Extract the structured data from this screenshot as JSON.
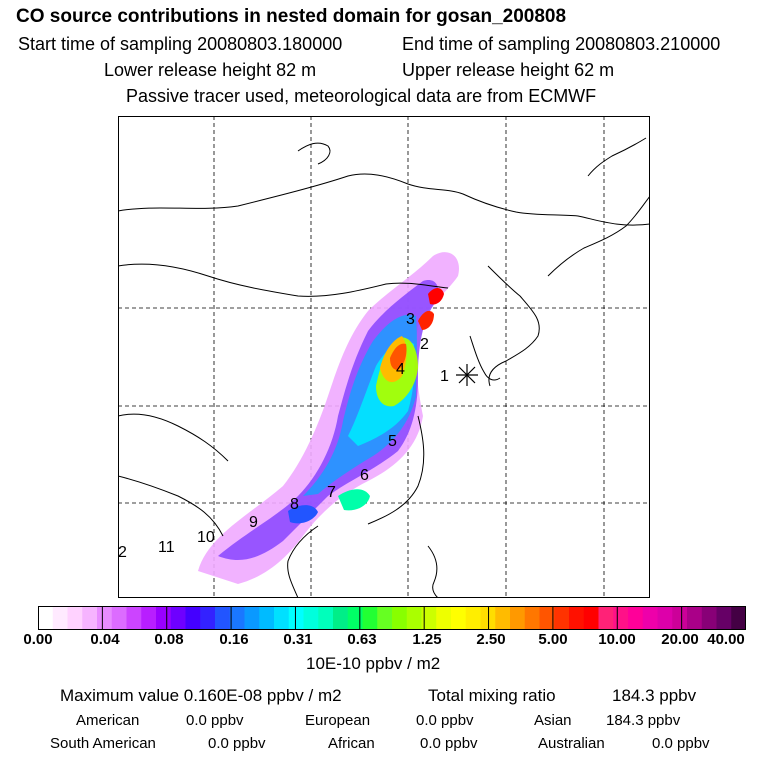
{
  "header": {
    "title": "CO  source contributions in nested domain for gosan_200808",
    "start_label": "Start time of sampling 20080803.180000",
    "end_label": "End time of sampling 20080803.210000",
    "lower_label": "Lower release height   82 m",
    "upper_label": "Upper release height   62 m",
    "note": "Passive tracer used, meteorological data are from ECMWF"
  },
  "map": {
    "region_labels": [
      "1",
      "2",
      "3",
      "4",
      "5",
      "6",
      "7",
      "8",
      "9",
      "10",
      "11",
      "2"
    ],
    "receptor_marker": "star-cross",
    "colors": {
      "land_outline": "#000000",
      "grid": "#000000",
      "plume_low": "#ff99ff",
      "plume_mid": "#0033ff",
      "plume_high": "#ffff00",
      "plume_peak": "#ff0000"
    }
  },
  "colorbar": {
    "tick_labels": [
      "0.00",
      "0.04",
      "0.08",
      "0.16",
      "0.31",
      "0.63",
      "1.25",
      "2.50",
      "5.00",
      "10.00",
      "20.00",
      "40.00"
    ],
    "colors": [
      "#ffffff",
      "#ffeaff",
      "#ffd2ff",
      "#f6b4ff",
      "#e88cff",
      "#dc6cff",
      "#cc44ff",
      "#b81eff",
      "#9900ff",
      "#6e00ff",
      "#4400ff",
      "#3322ff",
      "#2255ff",
      "#1a77ff",
      "#0a99ff",
      "#00bbff",
      "#00e0ff",
      "#00ffff",
      "#00ffdd",
      "#00ffbb",
      "#00ee88",
      "#00ff66",
      "#22ff33",
      "#66ff22",
      "#88ff00",
      "#aaff00",
      "#ccff00",
      "#eeff00",
      "#ffff00",
      "#ffee00",
      "#ffdd00",
      "#ffbb00",
      "#ff9900",
      "#ff7700",
      "#ff5500",
      "#ff3300",
      "#ff1100",
      "#ff0000",
      "#ff2277",
      "#ff1188",
      "#ff0099",
      "#ee00aa",
      "#dd00aa",
      "#cc0099",
      "#aa0088",
      "#880077",
      "#660066",
      "#440044"
    ],
    "units": "10E-10 ppbv / m2"
  },
  "stats": {
    "max_label": "Maximum value  0.160E-08 ppbv / m2",
    "total_label": "Total mixing ratio",
    "total_value": "184.3 ppbv",
    "american_label": "American",
    "american_value": "0.0 ppbv",
    "european_label": "European",
    "european_value": "0.0 ppbv",
    "asian_label": "Asian",
    "asian_value": "184.3 ppbv",
    "south_american_label": "South American",
    "south_american_value": "0.0 ppbv",
    "african_label": "African",
    "african_value": "0.0 ppbv",
    "australian_label": "Australian",
    "australian_value": "0.0 ppbv"
  }
}
